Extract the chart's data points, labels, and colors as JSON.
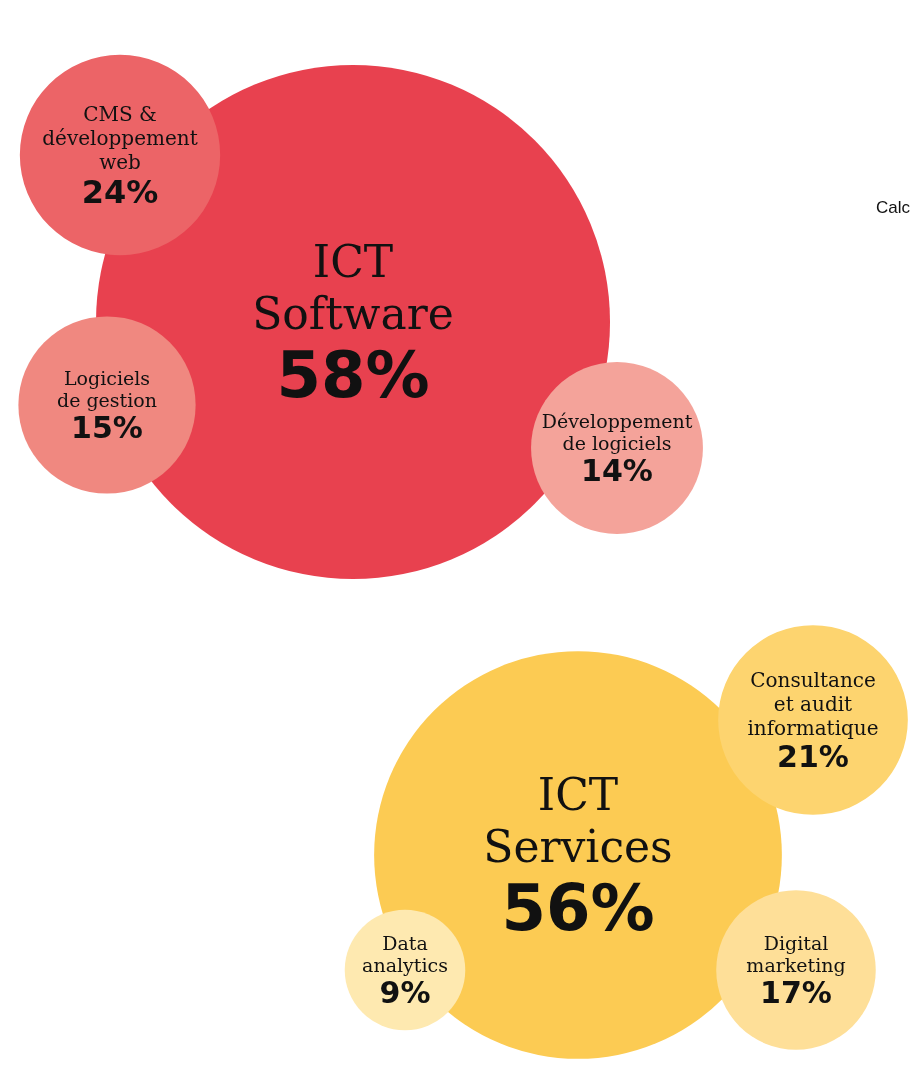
{
  "chart_data": {
    "type": "other",
    "categories": [
      "ICT\nSoftware",
      "CMS &\ndéveloppement\nweb",
      "Logiciels\nde gestion",
      "Développement\nde logiciels",
      "ICT\nServices",
      "Consultance\net audit\ninformatique",
      "Digital\nmarketing",
      "Data\nanalytics"
    ],
    "values": [
      58,
      24,
      15,
      14,
      56,
      21,
      17,
      9
    ],
    "colors": [
      "#e8414f",
      "#ec6467",
      "#f08880",
      "#f4a39a",
      "#fccb53",
      "#fdd46f",
      "#fedf98",
      "#fee9b0"
    ],
    "value_labels": [
      "58%",
      "24%",
      "15%",
      "14%",
      "56%",
      "21%",
      "17%",
      "9%"
    ],
    "annotations": [
      "Calc"
    ]
  }
}
